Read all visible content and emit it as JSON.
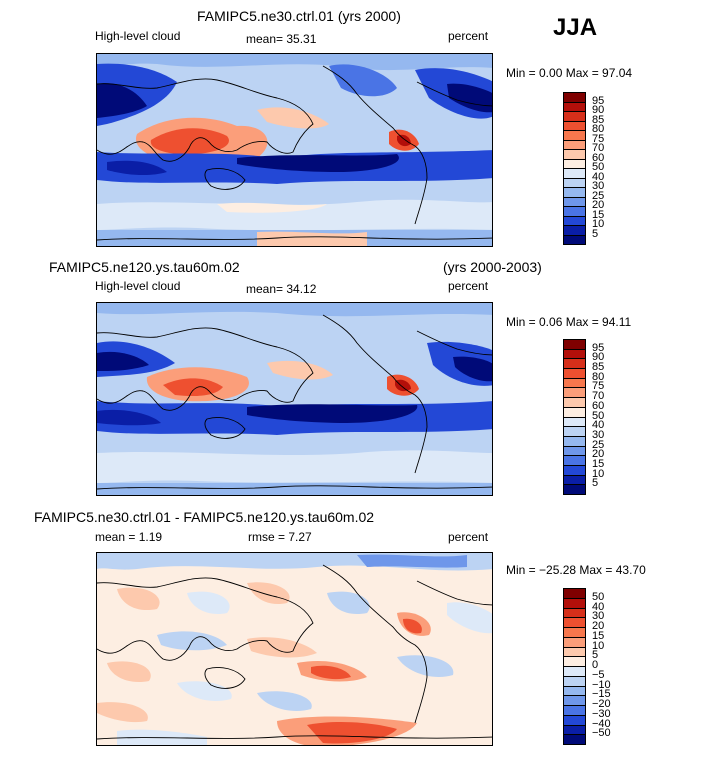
{
  "season": "JJA",
  "panels": [
    {
      "title": "FAMIPC5.ne30.ctrl.01 (yrs 2000)",
      "title_right": "",
      "left_label": "High-level cloud",
      "stat1": "mean=   35.31",
      "stat2": "",
      "units": "percent",
      "minmax": "Min =   0.00 Max =  97.04",
      "levels": [
        "95",
        "90",
        "85",
        "80",
        "75",
        "70",
        "60",
        "50",
        "40",
        "30",
        "25",
        "20",
        "15",
        "10",
        "5"
      ],
      "colors": [
        "#7f0000",
        "#b30f0a",
        "#d62f1a",
        "#ee5030",
        "#f7774d",
        "#fb9e7a",
        "#fdc9ad",
        "#fdeee2",
        "#dde9f8",
        "#bcd3f3",
        "#95b8ef",
        "#6f97ea",
        "#4a74e5",
        "#2348d6",
        "#0a1ea6",
        "#000a78"
      ]
    },
    {
      "title": "FAMIPC5.ne120.ys.tau60m.02",
      "title_right": "(yrs 2000-2003)",
      "left_label": "High-level cloud",
      "stat1": "mean=   34.12",
      "stat2": "",
      "units": "percent",
      "minmax": "Min =   0.06 Max =  94.11",
      "levels": [
        "95",
        "90",
        "85",
        "80",
        "75",
        "70",
        "60",
        "50",
        "40",
        "30",
        "25",
        "20",
        "15",
        "10",
        "5"
      ],
      "colors": [
        "#7f0000",
        "#b30f0a",
        "#d62f1a",
        "#ee5030",
        "#f7774d",
        "#fb9e7a",
        "#fdc9ad",
        "#fdeee2",
        "#dde9f8",
        "#bcd3f3",
        "#95b8ef",
        "#6f97ea",
        "#4a74e5",
        "#2348d6",
        "#0a1ea6",
        "#000a78"
      ]
    },
    {
      "title": "FAMIPC5.ne30.ctrl.01 - FAMIPC5.ne120.ys.tau60m.02",
      "title_right": "",
      "left_label": "mean =    1.19",
      "stat1": "rmse =    7.27",
      "stat2": "",
      "units": "percent",
      "minmax": "Min = −25.28 Max =  43.70",
      "levels": [
        "50",
        "40",
        "30",
        "20",
        "15",
        "10",
        "5",
        "0",
        "−5",
        "−10",
        "−15",
        "−20",
        "−30",
        "−40",
        "−50"
      ],
      "colors": [
        "#7f0000",
        "#b30f0a",
        "#d62f1a",
        "#ee5030",
        "#f7774d",
        "#fb9e7a",
        "#fdc9ad",
        "#fdeee2",
        "#dde9f8",
        "#bcd3f3",
        "#95b8ef",
        "#6f97ea",
        "#4a74e5",
        "#2348d6",
        "#0a1ea6",
        "#000a78"
      ]
    }
  ],
  "chart_data": [
    {
      "type": "heatmap",
      "title": "FAMIPC5.ne30.ctrl.01 (yrs 2000)",
      "variable": "High-level cloud",
      "units": "percent",
      "season": "JJA",
      "mean": 35.31,
      "min": 0.0,
      "max": 97.04,
      "contour_levels": [
        5,
        10,
        15,
        20,
        25,
        30,
        40,
        50,
        60,
        70,
        75,
        80,
        85,
        90,
        95
      ]
    },
    {
      "type": "heatmap",
      "title": "FAMIPC5.ne120.ys.tau60m.02",
      "years": "(yrs 2000-2003)",
      "variable": "High-level cloud",
      "units": "percent",
      "season": "JJA",
      "mean": 34.12,
      "min": 0.06,
      "max": 94.11,
      "contour_levels": [
        5,
        10,
        15,
        20,
        25,
        30,
        40,
        50,
        60,
        70,
        75,
        80,
        85,
        90,
        95
      ]
    },
    {
      "type": "heatmap",
      "title": "FAMIPC5.ne30.ctrl.01 - FAMIPC5.ne120.ys.tau60m.02",
      "units": "percent",
      "season": "JJA",
      "mean": 1.19,
      "rmse": 7.27,
      "min": -25.28,
      "max": 43.7,
      "contour_levels": [
        -50,
        -40,
        -30,
        -20,
        -15,
        -10,
        -5,
        0,
        5,
        10,
        15,
        20,
        30,
        40,
        50
      ]
    }
  ]
}
